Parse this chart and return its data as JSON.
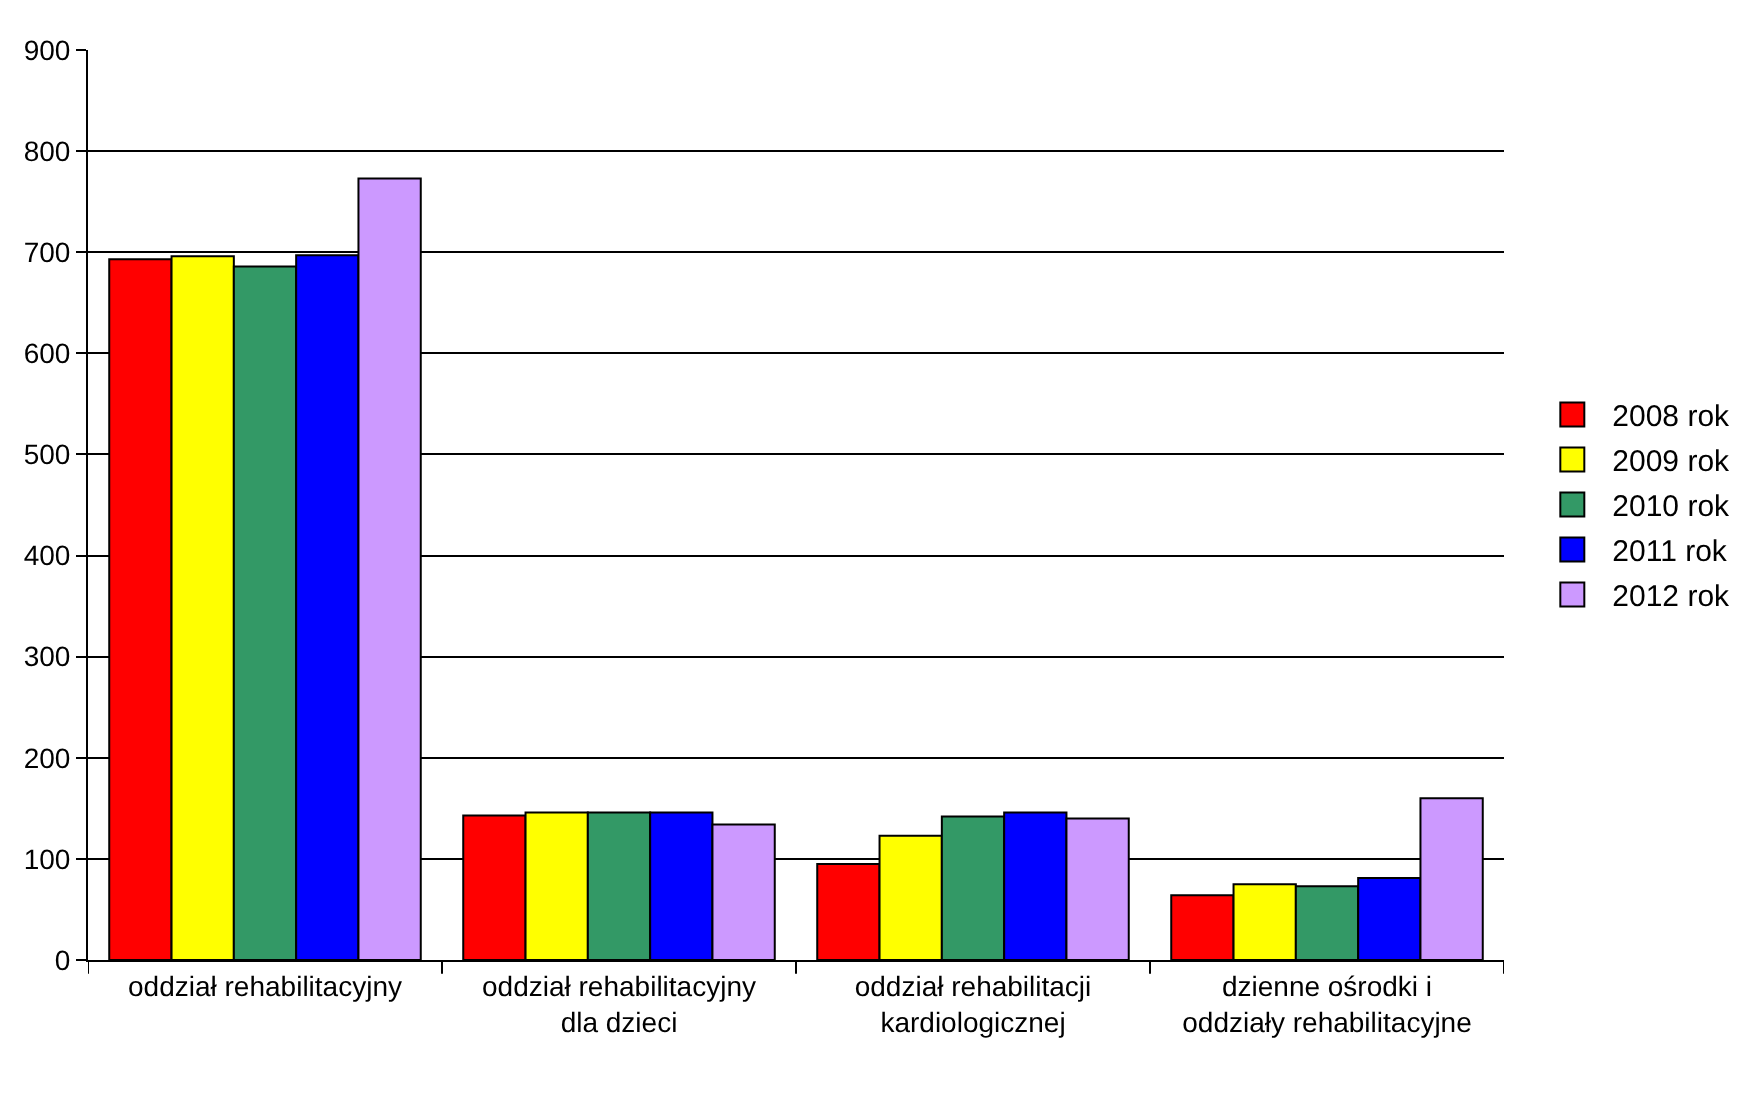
{
  "chart_data": {
    "type": "bar",
    "categories": [
      "oddział rehabilitacyjny",
      "oddział rehabilitacyjny dla dzieci",
      "oddział rehabilitacji kardiologicznej",
      "dzienne ośrodki i oddziały rehabilitacyjne"
    ],
    "series": [
      {
        "name": "2008 rok",
        "color": "#ff0000",
        "values": [
          693,
          143,
          95,
          64
        ]
      },
      {
        "name": "2009 rok",
        "color": "#ffff00",
        "values": [
          696,
          146,
          123,
          75
        ]
      },
      {
        "name": "2010 rok",
        "color": "#339966",
        "values": [
          686,
          146,
          142,
          73
        ]
      },
      {
        "name": "2011 rok",
        "color": "#0000ff",
        "values": [
          697,
          146,
          146,
          81
        ]
      },
      {
        "name": "2012 rok",
        "color": "#cc99ff",
        "values": [
          773,
          134,
          140,
          160
        ]
      }
    ],
    "ylim": [
      0,
      900
    ],
    "yticks": [
      0,
      100,
      200,
      300,
      400,
      500,
      600,
      700,
      800,
      900
    ],
    "grid": "y",
    "legend": "right"
  }
}
